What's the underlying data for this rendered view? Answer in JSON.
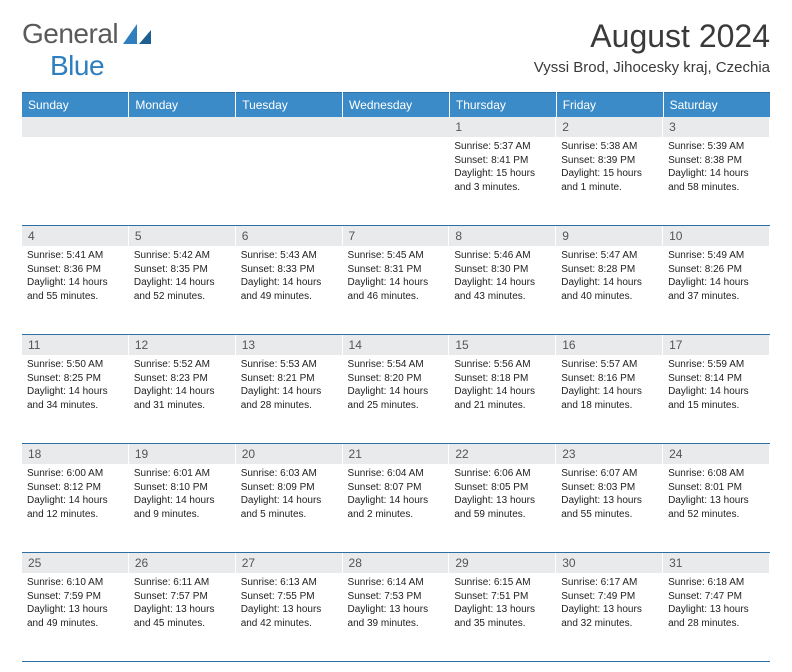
{
  "brand": {
    "text1": "General",
    "text2": "Blue"
  },
  "title": "August 2024",
  "location": "Vyssi Brod, Jihocesky kraj, Czechia",
  "colors": {
    "header_bg": "#3b8bc8",
    "header_fg": "#ffffff",
    "border": "#2e6fa3",
    "daynum_bg": "#e9eaeb",
    "logo_gray": "#5a5a5a",
    "logo_blue": "#2f7fbf"
  },
  "daysOfWeek": [
    "Sunday",
    "Monday",
    "Tuesday",
    "Wednesday",
    "Thursday",
    "Friday",
    "Saturday"
  ],
  "weeks": [
    [
      null,
      null,
      null,
      null,
      {
        "n": "1",
        "sr": "Sunrise: 5:37 AM",
        "ss": "Sunset: 8:41 PM",
        "dl": "Daylight: 15 hours and 3 minutes."
      },
      {
        "n": "2",
        "sr": "Sunrise: 5:38 AM",
        "ss": "Sunset: 8:39 PM",
        "dl": "Daylight: 15 hours and 1 minute."
      },
      {
        "n": "3",
        "sr": "Sunrise: 5:39 AM",
        "ss": "Sunset: 8:38 PM",
        "dl": "Daylight: 14 hours and 58 minutes."
      }
    ],
    [
      {
        "n": "4",
        "sr": "Sunrise: 5:41 AM",
        "ss": "Sunset: 8:36 PM",
        "dl": "Daylight: 14 hours and 55 minutes."
      },
      {
        "n": "5",
        "sr": "Sunrise: 5:42 AM",
        "ss": "Sunset: 8:35 PM",
        "dl": "Daylight: 14 hours and 52 minutes."
      },
      {
        "n": "6",
        "sr": "Sunrise: 5:43 AM",
        "ss": "Sunset: 8:33 PM",
        "dl": "Daylight: 14 hours and 49 minutes."
      },
      {
        "n": "7",
        "sr": "Sunrise: 5:45 AM",
        "ss": "Sunset: 8:31 PM",
        "dl": "Daylight: 14 hours and 46 minutes."
      },
      {
        "n": "8",
        "sr": "Sunrise: 5:46 AM",
        "ss": "Sunset: 8:30 PM",
        "dl": "Daylight: 14 hours and 43 minutes."
      },
      {
        "n": "9",
        "sr": "Sunrise: 5:47 AM",
        "ss": "Sunset: 8:28 PM",
        "dl": "Daylight: 14 hours and 40 minutes."
      },
      {
        "n": "10",
        "sr": "Sunrise: 5:49 AM",
        "ss": "Sunset: 8:26 PM",
        "dl": "Daylight: 14 hours and 37 minutes."
      }
    ],
    [
      {
        "n": "11",
        "sr": "Sunrise: 5:50 AM",
        "ss": "Sunset: 8:25 PM",
        "dl": "Daylight: 14 hours and 34 minutes."
      },
      {
        "n": "12",
        "sr": "Sunrise: 5:52 AM",
        "ss": "Sunset: 8:23 PM",
        "dl": "Daylight: 14 hours and 31 minutes."
      },
      {
        "n": "13",
        "sr": "Sunrise: 5:53 AM",
        "ss": "Sunset: 8:21 PM",
        "dl": "Daylight: 14 hours and 28 minutes."
      },
      {
        "n": "14",
        "sr": "Sunrise: 5:54 AM",
        "ss": "Sunset: 8:20 PM",
        "dl": "Daylight: 14 hours and 25 minutes."
      },
      {
        "n": "15",
        "sr": "Sunrise: 5:56 AM",
        "ss": "Sunset: 8:18 PM",
        "dl": "Daylight: 14 hours and 21 minutes."
      },
      {
        "n": "16",
        "sr": "Sunrise: 5:57 AM",
        "ss": "Sunset: 8:16 PM",
        "dl": "Daylight: 14 hours and 18 minutes."
      },
      {
        "n": "17",
        "sr": "Sunrise: 5:59 AM",
        "ss": "Sunset: 8:14 PM",
        "dl": "Daylight: 14 hours and 15 minutes."
      }
    ],
    [
      {
        "n": "18",
        "sr": "Sunrise: 6:00 AM",
        "ss": "Sunset: 8:12 PM",
        "dl": "Daylight: 14 hours and 12 minutes."
      },
      {
        "n": "19",
        "sr": "Sunrise: 6:01 AM",
        "ss": "Sunset: 8:10 PM",
        "dl": "Daylight: 14 hours and 9 minutes."
      },
      {
        "n": "20",
        "sr": "Sunrise: 6:03 AM",
        "ss": "Sunset: 8:09 PM",
        "dl": "Daylight: 14 hours and 5 minutes."
      },
      {
        "n": "21",
        "sr": "Sunrise: 6:04 AM",
        "ss": "Sunset: 8:07 PM",
        "dl": "Daylight: 14 hours and 2 minutes."
      },
      {
        "n": "22",
        "sr": "Sunrise: 6:06 AM",
        "ss": "Sunset: 8:05 PM",
        "dl": "Daylight: 13 hours and 59 minutes."
      },
      {
        "n": "23",
        "sr": "Sunrise: 6:07 AM",
        "ss": "Sunset: 8:03 PM",
        "dl": "Daylight: 13 hours and 55 minutes."
      },
      {
        "n": "24",
        "sr": "Sunrise: 6:08 AM",
        "ss": "Sunset: 8:01 PM",
        "dl": "Daylight: 13 hours and 52 minutes."
      }
    ],
    [
      {
        "n": "25",
        "sr": "Sunrise: 6:10 AM",
        "ss": "Sunset: 7:59 PM",
        "dl": "Daylight: 13 hours and 49 minutes."
      },
      {
        "n": "26",
        "sr": "Sunrise: 6:11 AM",
        "ss": "Sunset: 7:57 PM",
        "dl": "Daylight: 13 hours and 45 minutes."
      },
      {
        "n": "27",
        "sr": "Sunrise: 6:13 AM",
        "ss": "Sunset: 7:55 PM",
        "dl": "Daylight: 13 hours and 42 minutes."
      },
      {
        "n": "28",
        "sr": "Sunrise: 6:14 AM",
        "ss": "Sunset: 7:53 PM",
        "dl": "Daylight: 13 hours and 39 minutes."
      },
      {
        "n": "29",
        "sr": "Sunrise: 6:15 AM",
        "ss": "Sunset: 7:51 PM",
        "dl": "Daylight: 13 hours and 35 minutes."
      },
      {
        "n": "30",
        "sr": "Sunrise: 6:17 AM",
        "ss": "Sunset: 7:49 PM",
        "dl": "Daylight: 13 hours and 32 minutes."
      },
      {
        "n": "31",
        "sr": "Sunrise: 6:18 AM",
        "ss": "Sunset: 7:47 PM",
        "dl": "Daylight: 13 hours and 28 minutes."
      }
    ]
  ]
}
